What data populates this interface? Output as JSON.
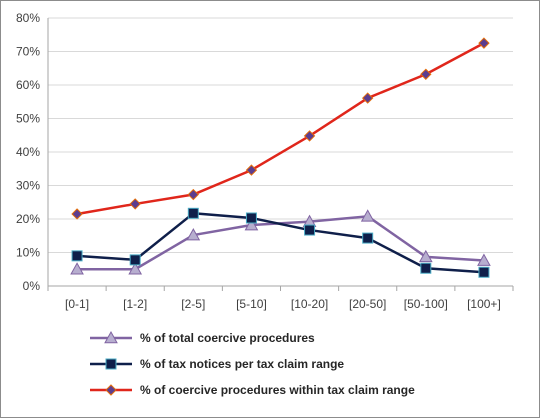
{
  "chart_data": {
    "type": "line",
    "categories": [
      "[0-1]",
      "[1-2]",
      "[2-5]",
      "[5-10]",
      "[10-20]",
      "[20-50]",
      "[50-100]",
      "[100+]"
    ],
    "y_ticks": [
      "0%",
      "10%",
      "20%",
      "30%",
      "40%",
      "50%",
      "60%",
      "70%",
      "80%"
    ],
    "ylim": [
      0,
      80
    ],
    "grid": true,
    "legend_position": "bottom",
    "series": [
      {
        "name": "% of total coercive procedures",
        "values": [
          5,
          5,
          15.2,
          18.2,
          19.2,
          20.8,
          8.7,
          7.6
        ],
        "color": "#8064a2",
        "marker": "triangle",
        "marker_fill": "#b7aecf"
      },
      {
        "name": "% of tax notices per tax claim range",
        "values": [
          9,
          7.8,
          21.7,
          20.3,
          16.7,
          14.3,
          5.3,
          4.1
        ],
        "color": "#0f1f4a",
        "marker": "square",
        "marker_fill": "#0f1f4a"
      },
      {
        "name": "% of coercive procedures within tax claim range",
        "values": [
          21.5,
          24.5,
          27.3,
          34.6,
          44.8,
          56.1,
          63.2,
          72.5
        ],
        "color": "#e0261b",
        "marker": "diamond",
        "marker_fill": "#5c3d8f"
      }
    ]
  }
}
